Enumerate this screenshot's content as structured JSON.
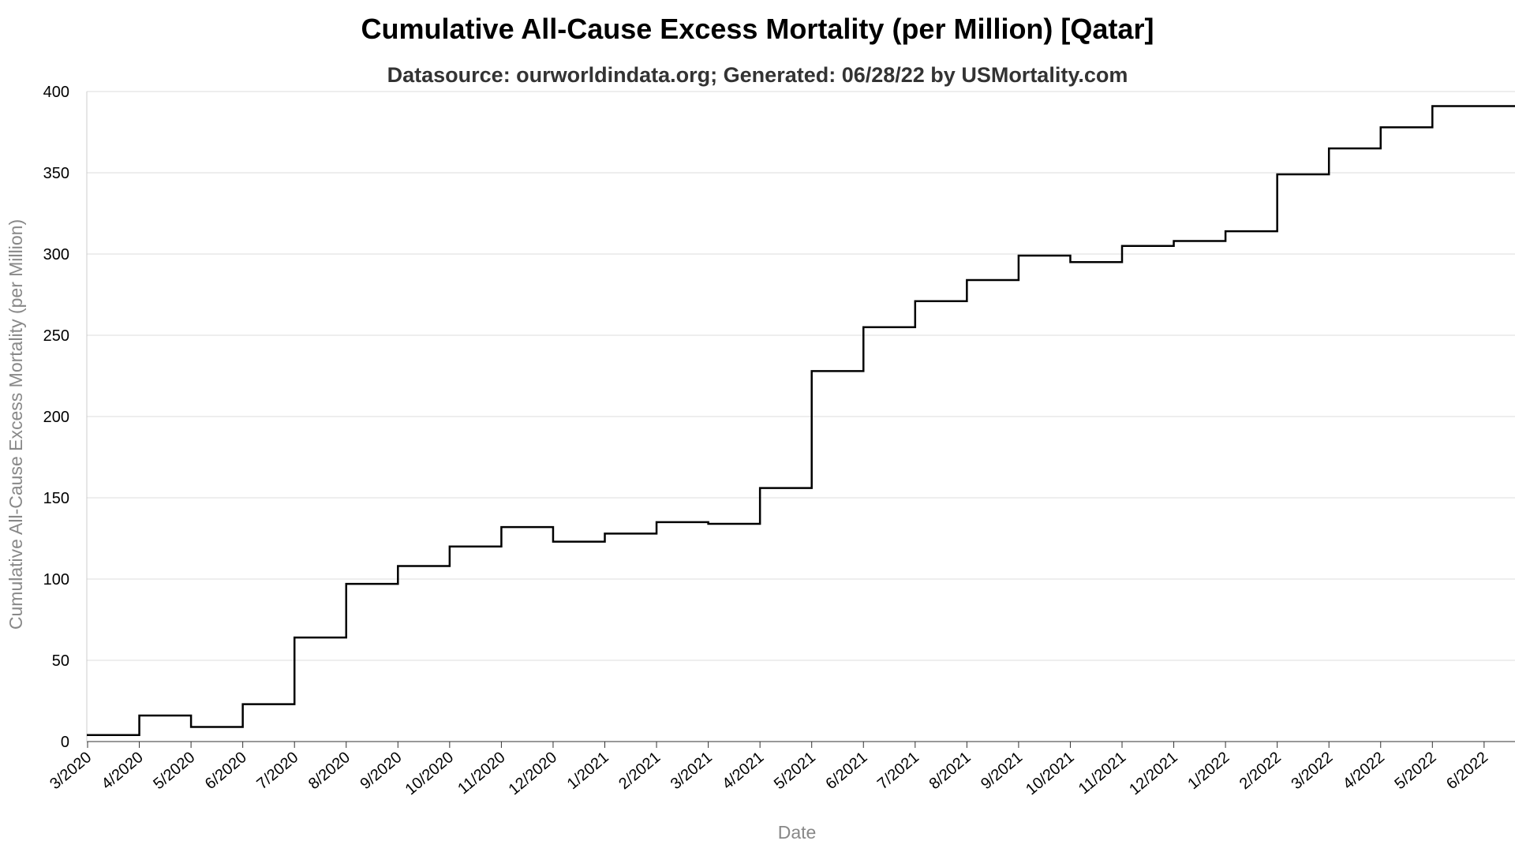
{
  "title": "Cumulative All-Cause Excess Mortality (per Million) [Qatar]",
  "subtitle": "Datasource: ourworldindata.org; Generated: 06/28/22 by USMortality.com",
  "chart_data": {
    "type": "line",
    "step": true,
    "title": "Cumulative All-Cause Excess Mortality (per Million) [Qatar]",
    "subtitle": "Datasource: ourworldindata.org; Generated: 06/28/22 by USMortality.com",
    "xlabel": "Date",
    "ylabel": "Cumulative All-Cause Excess Mortality (per Million)",
    "ylim": [
      0,
      400
    ],
    "yticks": [
      0,
      50,
      100,
      150,
      200,
      250,
      300,
      350,
      400
    ],
    "xticks": [
      "3/2020",
      "4/2020",
      "5/2020",
      "6/2020",
      "7/2020",
      "8/2020",
      "9/2020",
      "10/2020",
      "11/2020",
      "12/2020",
      "1/2021",
      "2/2021",
      "3/2021",
      "4/2021",
      "5/2021",
      "6/2021",
      "7/2021",
      "8/2021",
      "9/2021",
      "10/2021",
      "11/2021",
      "12/2021",
      "1/2022",
      "2/2022",
      "3/2022",
      "4/2022",
      "5/2022",
      "6/2022"
    ],
    "xlim": [
      "3/2020",
      "6/2022"
    ],
    "grid": true,
    "line_color": "#000000",
    "series": [
      {
        "x": [
          "3/2020",
          "4/2020",
          "5/2020",
          "6/2020",
          "7/2020",
          "8/2020",
          "9/2020",
          "10/2020",
          "11/2020",
          "12/2020",
          "1/2021",
          "2/2021",
          "3/2021",
          "4/2021",
          "5/2021",
          "6/2021",
          "7/2021",
          "8/2021",
          "9/2021",
          "10/2021",
          "11/2021",
          "12/2021",
          "1/2022",
          "2/2022",
          "3/2022",
          "4/2022",
          "5/2022",
          "6/2022"
        ],
        "values": [
          4,
          16,
          9,
          23,
          64,
          97,
          108,
          120,
          132,
          123,
          128,
          135,
          134,
          156,
          228,
          255,
          271,
          284,
          299,
          295,
          305,
          308,
          314,
          349,
          365,
          378,
          391,
          391
        ]
      }
    ]
  }
}
